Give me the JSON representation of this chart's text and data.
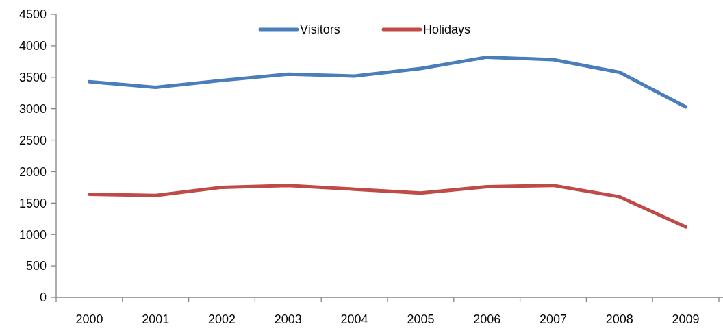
{
  "chart_data": {
    "type": "line",
    "categories": [
      "2000",
      "2001",
      "2002",
      "2003",
      "2004",
      "2005",
      "2006",
      "2007",
      "2008",
      "2009"
    ],
    "series": [
      {
        "name": "Visitors",
        "color": "#4a7ebb",
        "values": [
          3430,
          3340,
          3450,
          3550,
          3520,
          3640,
          3820,
          3780,
          3580,
          3030
        ]
      },
      {
        "name": "Holidays",
        "color": "#be4b48",
        "values": [
          1640,
          1620,
          1750,
          1780,
          1720,
          1660,
          1760,
          1780,
          1600,
          1120
        ]
      }
    ],
    "ylim": [
      0,
      4500
    ],
    "yticks": [
      0,
      500,
      1000,
      1500,
      2000,
      2500,
      3000,
      3500,
      4000,
      4500
    ],
    "grid": false,
    "legend": "top",
    "marker": "none",
    "line_style": "solid"
  }
}
